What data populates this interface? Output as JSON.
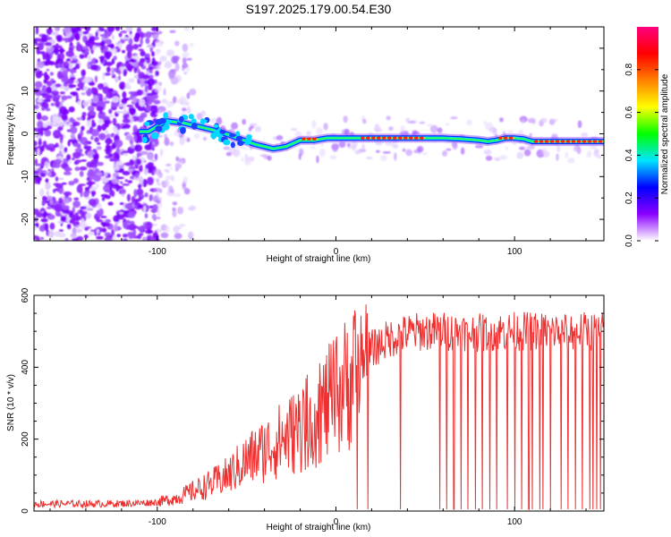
{
  "title": "S197.2025.179.00.54.E30",
  "chart_data": [
    {
      "type": "heatmap",
      "xlabel": "Height of straight line (km)",
      "ylabel": "Frequency (Hz)",
      "xlim": [
        -169,
        150
      ],
      "ylim": [
        -25,
        25
      ],
      "xticks": [
        -100,
        0,
        100
      ],
      "yticks": [
        -20,
        -10,
        0,
        10,
        20
      ],
      "grid": false,
      "colorbar": {
        "label": "Normalized spectral amplitude",
        "range": [
          0.0,
          1.0
        ],
        "ticks": [
          0.0,
          0.2,
          0.4,
          0.6,
          0.8
        ],
        "colormap": [
          "#ffffff",
          "#8a00ff",
          "#0000ff",
          "#00e5ff",
          "#00ff00",
          "#ffff00",
          "#ff8000",
          "#ff0000",
          "#ff0080"
        ]
      },
      "ridge": {
        "x": [
          -105,
          -95,
          -85,
          -75,
          -65,
          -55,
          -45,
          -35,
          -28,
          -20,
          -12,
          -5,
          0,
          10,
          20,
          30,
          40,
          50,
          60,
          70,
          80,
          85,
          90,
          95,
          100,
          105,
          110,
          120,
          130,
          140,
          150
        ],
        "y": [
          0.5,
          3.0,
          2.5,
          1.5,
          0.5,
          -1.0,
          -2.5,
          -3.5,
          -3.0,
          -1.5,
          -1.5,
          -1.0,
          -1.0,
          -1.0,
          -1.0,
          -1.0,
          -1.0,
          -1.0,
          -1.0,
          -1.2,
          -1.5,
          -1.8,
          -1.5,
          -1.0,
          -1.0,
          -1.2,
          -1.8,
          -1.8,
          -1.8,
          -1.8,
          -1.8
        ]
      },
      "peak_regions": [
        {
          "x": [
            -18,
            -12
          ],
          "y": -1.2
        },
        {
          "x": [
            15,
            48
          ],
          "y": -1.0
        },
        {
          "x": [
            92,
            100
          ],
          "y": -1.0
        },
        {
          "x": [
            112,
            150
          ],
          "y": -1.8
        }
      ]
    },
    {
      "type": "line",
      "xlabel": "Height of straight line (km)",
      "ylabel": "SNR (10 * v/v)",
      "xlim": [
        -169,
        150
      ],
      "ylim": [
        0,
        600
      ],
      "xticks": [
        -100,
        0,
        100
      ],
      "yticks": [
        0,
        200,
        400,
        600
      ],
      "grid": false,
      "series": [
        {
          "color": "#ee3030",
          "x": [
            -169,
            -150,
            -130,
            -110,
            -100,
            -90,
            -80,
            -70,
            -60,
            -50,
            -40,
            -30,
            -20,
            -10,
            0,
            10,
            20,
            30,
            40,
            50,
            60,
            70,
            80,
            90,
            100,
            110,
            120,
            130,
            140,
            150
          ],
          "values": [
            20,
            20,
            20,
            22,
            25,
            35,
            55,
            75,
            100,
            140,
            170,
            200,
            230,
            270,
            320,
            380,
            450,
            480,
            495,
            500,
            500,
            500,
            495,
            500,
            500,
            500,
            500,
            500,
            500,
            500
          ]
        }
      ],
      "dropouts_to_zero": [
        12,
        18,
        36,
        58,
        62,
        66,
        70,
        74,
        78,
        82,
        86,
        90,
        96,
        100,
        104,
        108,
        110,
        114,
        116,
        120,
        126,
        130,
        134,
        138,
        142,
        144,
        146,
        148
      ]
    }
  ]
}
